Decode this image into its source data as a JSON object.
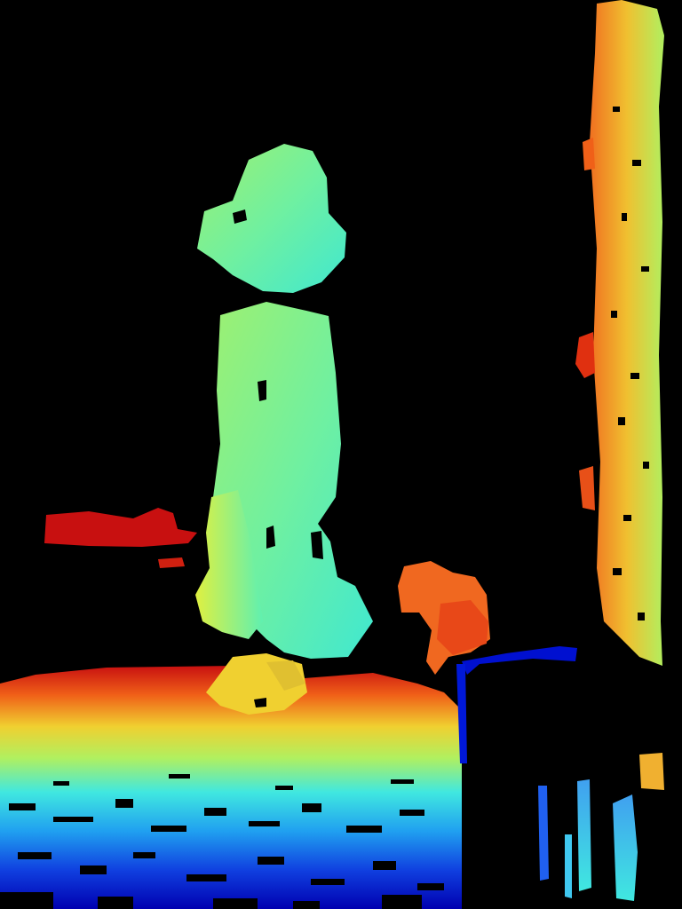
{
  "image": {
    "kind": "depth-map",
    "colormap": "jet",
    "background": "#000000",
    "colors": {
      "near": "#0000c8",
      "cyan": "#40e8e0",
      "green": "#9ef070",
      "yellow": "#f0e030",
      "orange": "#f08a20",
      "far": "#c81010"
    }
  }
}
